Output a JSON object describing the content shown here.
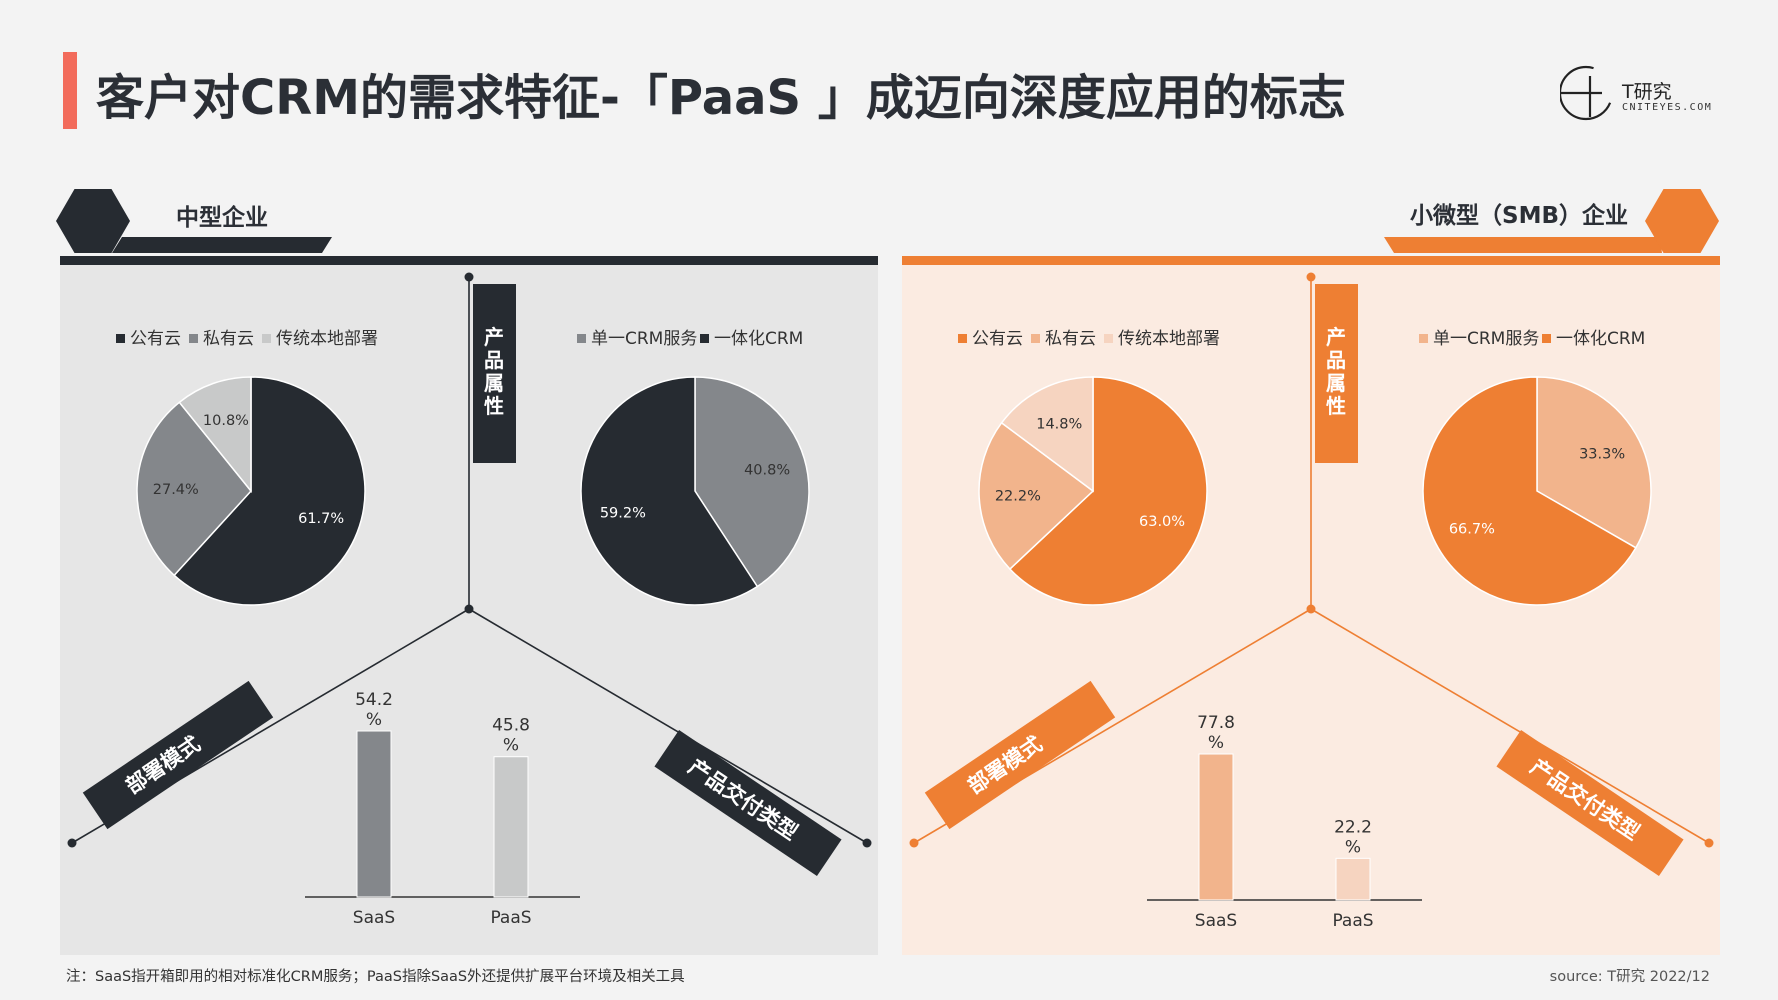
{
  "title": "客户对CRM的需求特征-「PaaS 」成迈向深度应用的标志",
  "logo": {
    "name": "T研究",
    "sub": "CNITEYES.COM"
  },
  "footnote": "注：SaaS指开箱即用的相对标准化CRM服务；PaaS指除SaaS外还提供扩展平台环境及相关工具",
  "source": "source:   T研究 2022/12",
  "axis_labels": {
    "top": "产品属性",
    "left": "部署模式",
    "right": "产品交付类型"
  },
  "panels": [
    {
      "title": "中型企业",
      "theme": "dark"
    },
    {
      "title": "小微型（SMB）企业",
      "theme": "orange"
    }
  ],
  "chart_data": [
    {
      "type": "pie",
      "panel": "中型企业",
      "series": [
        {
          "name": "公有云",
          "value": 61.7,
          "label": "61.7%",
          "color": "#262b31"
        },
        {
          "name": "私有云",
          "value": 27.4,
          "label": "27.4%",
          "color": "#84878b"
        },
        {
          "name": "传统本地部署",
          "value": 10.8,
          "label": "10.8%",
          "color": "#c8c9c9"
        }
      ],
      "legend_position": "top"
    },
    {
      "type": "pie",
      "panel": "中型企业",
      "series": [
        {
          "name": "单一CRM服务",
          "value": 40.8,
          "label": "40.8%",
          "color": "#84878b"
        },
        {
          "name": "一体化CRM",
          "value": 59.2,
          "label": "59.2%",
          "color": "#262b31"
        }
      ],
      "legend_position": "top"
    },
    {
      "type": "bar",
      "panel": "中型企业",
      "categories": [
        "SaaS",
        "PaaS"
      ],
      "values": [
        54.2,
        45.8
      ],
      "labels": [
        "54.2\n%",
        "45.8\n%"
      ],
      "colors": [
        "#84878b",
        "#c8c9c9"
      ]
    },
    {
      "type": "pie",
      "panel": "小微型（SMB）企业",
      "series": [
        {
          "name": "公有云",
          "value": 63.0,
          "label": "63.0%",
          "color": "#ee7f33"
        },
        {
          "name": "私有云",
          "value": 22.2,
          "label": "22.2%",
          "color": "#f2b48c"
        },
        {
          "name": "传统本地部署",
          "value": 14.8,
          "label": "14.8%",
          "color": "#f6d4c0"
        }
      ],
      "legend_position": "top"
    },
    {
      "type": "pie",
      "panel": "小微型（SMB）企业",
      "series": [
        {
          "name": "单一CRM服务",
          "value": 33.3,
          "label": "33.3%",
          "color": "#f2b48c"
        },
        {
          "name": "一体化CRM",
          "value": 66.7,
          "label": "66.7%",
          "color": "#ee7f33"
        }
      ],
      "legend_position": "top"
    },
    {
      "type": "bar",
      "panel": "小微型（SMB）企业",
      "categories": [
        "SaaS",
        "PaaS"
      ],
      "values": [
        77.8,
        22.2
      ],
      "labels": [
        "77.8\n%",
        "22.2\n%"
      ],
      "colors": [
        "#f2b48c",
        "#f6d4c0"
      ]
    }
  ],
  "colors": {
    "dark": "#262b31",
    "orange": "#ee7f33",
    "accent_red": "#f26b5b"
  }
}
